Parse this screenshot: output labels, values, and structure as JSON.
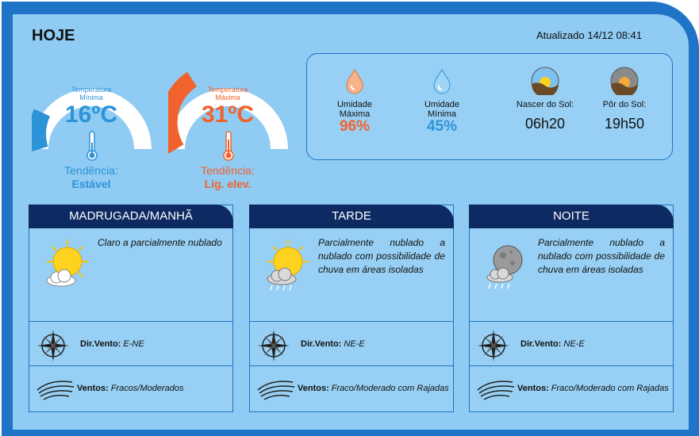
{
  "header": {
    "title": "HOJE",
    "updated": "Atualizado 14/12 08:41"
  },
  "gauges": {
    "min": {
      "label_line1": "Temperatura",
      "label_line2": "Mínima",
      "value": "16",
      "unit": "ºC",
      "trend_label": "Tendência:",
      "trend_value": "Estável",
      "color": "#2d93d9"
    },
    "max": {
      "label_line1": "Temperatura",
      "label_line2": "Máxima",
      "value": "31",
      "unit": "ºC",
      "trend_label": "Tendência:",
      "trend_value": "Lig. elev.",
      "color": "#f2622c"
    }
  },
  "info": {
    "humidity_max": {
      "label_line1": "Umidade",
      "label_line2": "Máxima",
      "value": "96%",
      "color": "#f2622c",
      "icon": "humidity-max-drop-icon"
    },
    "humidity_min": {
      "label_line1": "Umidade",
      "label_line2": "Mínima",
      "value": "45%",
      "color": "#2d93d9",
      "icon": "humidity-min-drop-icon"
    },
    "sunrise": {
      "label": "Nascer do Sol:",
      "value": "06h20",
      "icon": "sunrise-icon"
    },
    "sunset": {
      "label": "Pôr do Sol:",
      "value": "19h50",
      "icon": "sunset-icon"
    }
  },
  "periods": [
    {
      "title": "MADRUGADA/MANHÃ",
      "description": "Claro a parcialmente nublado",
      "icon": "sun-cloud-icon",
      "wind_dir_label": "Dir.Vento:",
      "wind_dir_value": "E-NE",
      "winds_label": "Ventos:",
      "winds_value": "Fracos/Moderados"
    },
    {
      "title": "TARDE",
      "description": "Parcialmente nublado a nublado com possibilidade de chuva em áreas isoladas",
      "icon": "sun-cloud-rain-icon",
      "wind_dir_label": "Dir.Vento:",
      "wind_dir_value": "NE-E",
      "winds_label": "Ventos:",
      "winds_value": "Fraco/Moderado com Rajadas"
    },
    {
      "title": "NOITE",
      "description": "Parcialmente nublado a nublado com possibilidade de chuva em áreas isoladas",
      "icon": "moon-cloud-rain-icon",
      "wind_dir_label": "Dir.Vento:",
      "wind_dir_value": "NE-E",
      "winds_label": "Ventos:",
      "winds_value": "Fraco/Moderado com Rajadas"
    }
  ]
}
